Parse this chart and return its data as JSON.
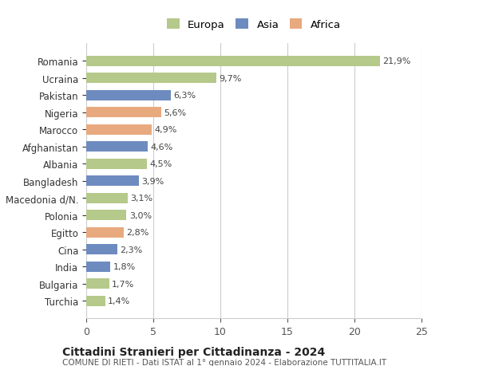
{
  "categories": [
    "Turchia",
    "Bulgaria",
    "India",
    "Cina",
    "Egitto",
    "Polonia",
    "Macedonia d/N.",
    "Bangladesh",
    "Albania",
    "Afghanistan",
    "Marocco",
    "Nigeria",
    "Pakistan",
    "Ucraina",
    "Romania"
  ],
  "values": [
    1.4,
    1.7,
    1.8,
    2.3,
    2.8,
    3.0,
    3.1,
    3.9,
    4.5,
    4.6,
    4.9,
    5.6,
    6.3,
    9.7,
    21.9
  ],
  "labels": [
    "1,4%",
    "1,7%",
    "1,8%",
    "2,3%",
    "2,8%",
    "3,0%",
    "3,1%",
    "3,9%",
    "4,5%",
    "4,6%",
    "4,9%",
    "5,6%",
    "6,3%",
    "9,7%",
    "21,9%"
  ],
  "continents": [
    "Europa",
    "Europa",
    "Asia",
    "Asia",
    "Africa",
    "Europa",
    "Europa",
    "Asia",
    "Europa",
    "Asia",
    "Africa",
    "Africa",
    "Asia",
    "Europa",
    "Europa"
  ],
  "colors": {
    "Europa": "#b5c98a",
    "Asia": "#6d8bbf",
    "Africa": "#e8a97e"
  },
  "xlim": [
    0,
    25
  ],
  "xticks": [
    0,
    5,
    10,
    15,
    20,
    25
  ],
  "title": "Cittadini Stranieri per Cittadinanza - 2024",
  "subtitle": "COMUNE DI RIETI - Dati ISTAT al 1° gennaio 2024 - Elaborazione TUTTITALIA.IT",
  "background_color": "#ffffff",
  "grid_color": "#cccccc",
  "bar_height": 0.6
}
